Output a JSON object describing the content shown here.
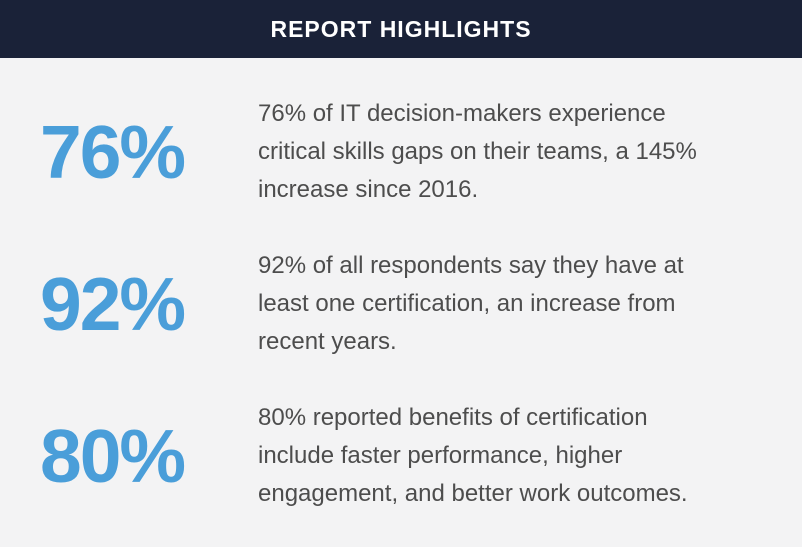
{
  "header": {
    "title": "REPORT HIGHLIGHTS"
  },
  "colors": {
    "header_background": "#1a2238",
    "header_text": "#ffffff",
    "stat_number_blue": "#4a9ed9",
    "body_background": "#f3f3f4",
    "body_text": "#4d4d4d"
  },
  "stats": [
    {
      "value": "76%",
      "lines": [
        "76% of IT decision-makers experience",
        "critical skills gaps on their teams, a 145%",
        "increase since 2016."
      ]
    },
    {
      "value": "92%",
      "lines": [
        "92% of all respondents say they have at",
        "least one certification, an increase from",
        "recent years."
      ]
    },
    {
      "value": "80%",
      "lines": [
        "80% reported benefits of certification",
        "include faster performance, higher",
        "engagement, and better work outcomes."
      ]
    }
  ]
}
